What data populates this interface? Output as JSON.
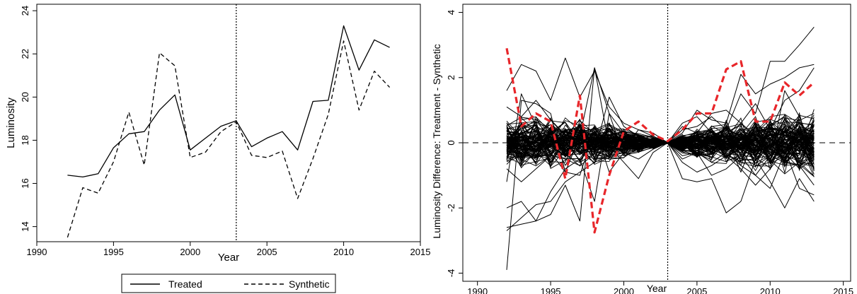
{
  "chart_data": [
    {
      "type": "line",
      "title": "",
      "xlabel": "Year",
      "ylabel": "Luminosity",
      "xlim": [
        1990,
        2015
      ],
      "ylim": [
        13.3,
        24.3
      ],
      "xticks": [
        1990,
        1995,
        2000,
        2005,
        2010,
        2015
      ],
      "yticks": [
        14,
        16,
        18,
        20,
        22,
        24
      ],
      "vline": 2003,
      "grid": false,
      "legend_position": "bottom",
      "x": [
        1992,
        1993,
        1994,
        1995,
        1996,
        1997,
        1998,
        1999,
        2000,
        2001,
        2002,
        2003,
        2004,
        2005,
        2006,
        2007,
        2008,
        2009,
        2010,
        2011,
        2012,
        2013
      ],
      "series": [
        {
          "name": "Treated",
          "style": "solid",
          "values": [
            16.38,
            16.3,
            16.45,
            17.65,
            18.3,
            18.4,
            19.4,
            20.1,
            17.55,
            18.1,
            18.65,
            18.9,
            17.7,
            18.1,
            18.4,
            17.55,
            19.8,
            19.85,
            23.3,
            21.25,
            22.65,
            22.3
          ]
        },
        {
          "name": "Synthetic",
          "style": "dashed",
          "values": [
            13.5,
            15.8,
            15.55,
            17.0,
            19.3,
            16.85,
            22.05,
            21.45,
            17.2,
            17.45,
            18.4,
            18.85,
            17.3,
            17.2,
            17.5,
            15.3,
            17.15,
            19.2,
            22.6,
            19.4,
            21.2,
            20.45
          ]
        }
      ]
    },
    {
      "type": "line",
      "title": "",
      "xlabel": "Year",
      "ylabel": "Luminosity Difference: Treatment - Synthetic",
      "xlim": [
        1989,
        2015.5
      ],
      "ylim": [
        -4.25,
        4.25
      ],
      "xticks": [
        1990,
        1995,
        2000,
        2005,
        2010,
        2015
      ],
      "yticks": [
        -4,
        -2,
        0,
        2,
        4
      ],
      "vline": 2003,
      "hline": 0,
      "grid": false,
      "legend_position": "none",
      "x": [
        1992,
        1993,
        1994,
        1995,
        1996,
        1997,
        1998,
        1999,
        2000,
        2001,
        2002,
        2003,
        2004,
        2005,
        2006,
        2007,
        2008,
        2009,
        2010,
        2011,
        2012,
        2013
      ],
      "highlight": {
        "name": "Treated",
        "color": "#e8262a",
        "values": [
          2.9,
          0.5,
          0.9,
          0.65,
          -1.1,
          1.45,
          -2.75,
          -1.0,
          0.35,
          0.65,
          0.25,
          0.05,
          0.4,
          0.9,
          0.9,
          2.25,
          2.5,
          0.65,
          0.65,
          1.85,
          1.45,
          1.85
        ]
      },
      "placebos": [
        [
          -3.9,
          1.3,
          1.2,
          0.9,
          -0.9,
          0.2,
          2.3,
          0.9,
          0.3,
          0.2,
          0.1,
          0.0,
          0.4,
          0.5,
          0.8,
          0.4,
          1.5,
          0.9,
          2.5,
          2.5,
          3.0,
          3.55
        ],
        [
          1.6,
          2.4,
          2.2,
          1.3,
          2.6,
          1.4,
          2.2,
          1.1,
          0.6,
          0.4,
          0.2,
          0.0,
          0.3,
          1.0,
          0.7,
          0.6,
          2.1,
          1.5,
          1.8,
          2.0,
          2.3,
          2.4
        ],
        [
          -2.7,
          -2.3,
          -1.9,
          -1.8,
          -1.2,
          -0.9,
          -0.6,
          -0.4,
          -0.3,
          -0.1,
          0.0,
          0.0,
          -1.1,
          -1.2,
          -1.1,
          -2.15,
          -1.8,
          -0.5,
          -1.2,
          -2.0,
          -1.1,
          -1.8
        ],
        [
          -2.6,
          -2.5,
          -2.4,
          -2.2,
          -1.3,
          -2.4,
          2.3,
          -0.1,
          -0.6,
          -1.1,
          -0.3,
          0.0,
          -0.6,
          -0.9,
          -0.7,
          -0.4,
          -0.8,
          -1.3,
          -0.8,
          -0.2,
          -1.4,
          -1.6
        ],
        [
          -2.0,
          -1.8,
          -2.4,
          -1.5,
          -0.8,
          -0.5,
          -1.8,
          0.9,
          -0.4,
          -0.2,
          -0.1,
          0.0,
          -0.5,
          -0.3,
          -1.0,
          -0.8,
          -0.4,
          -1.0,
          -1.4,
          -0.3,
          -0.8,
          -0.5
        ],
        [
          -1.2,
          1.5,
          0.5,
          -0.3,
          -0.9,
          -1.0,
          0.4,
          0.6,
          -0.2,
          0.4,
          0.3,
          0.0,
          0.6,
          0.8,
          0.3,
          0.2,
          -0.9,
          0.2,
          -0.6,
          1.6,
          0.8,
          -0.3
        ],
        [
          1.1,
          0.8,
          1.3,
          0.7,
          0.2,
          0.7,
          -0.3,
          1.4,
          0.5,
          0.2,
          0.2,
          0.0,
          0.5,
          0.3,
          0.9,
          1.0,
          0.6,
          1.2,
          0.4,
          1.3,
          1.6,
          2.3
        ],
        [
          -0.8,
          -1.2,
          -0.8,
          -0.4,
          -0.5,
          -0.7,
          0.5,
          -0.9,
          -0.3,
          -0.5,
          -0.2,
          0.0,
          -0.4,
          -0.3,
          -0.6,
          -0.3,
          -0.7,
          -1.0,
          -0.4,
          -0.6,
          -0.7,
          -1.3
        ]
      ],
      "placebo_band": {
        "count": 110,
        "pre_amplitude": [
          0.55,
          0.6,
          0.6,
          0.6,
          0.55,
          0.55,
          0.5,
          0.45,
          0.35,
          0.25,
          0.15,
          0.02
        ],
        "post_amplitude": [
          0.02,
          0.25,
          0.35,
          0.45,
          0.5,
          0.55,
          0.6,
          0.65,
          0.7,
          0.75,
          0.8,
          0.85
        ]
      }
    }
  ],
  "legend": {
    "items": [
      {
        "label": "Treated",
        "style": "solid"
      },
      {
        "label": "Synthetic",
        "style": "dashed"
      }
    ]
  }
}
